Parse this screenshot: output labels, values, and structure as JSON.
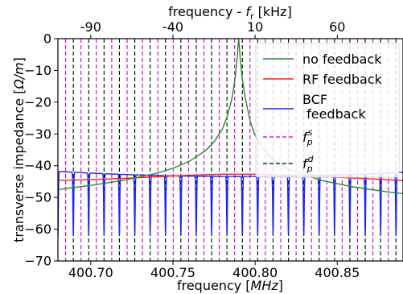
{
  "chart_data": {
    "type": "line",
    "title": "",
    "xlabel": "frequency",
    "xlabel_unit": "MHz",
    "ylabel": "transverse impedance",
    "ylabel_unit": "Ω/m",
    "top_xlabel": "frequency - ",
    "top_xlabel_symbol": "f",
    "top_xlabel_sub": "r",
    "top_xlabel_unit": "[kHz]",
    "xlim": [
      400.68,
      400.89
    ],
    "ylim": [
      -70,
      0
    ],
    "x_ticks": [
      400.7,
      400.75,
      400.8,
      400.85
    ],
    "x_tick_labels": [
      "400.70",
      "400.75",
      "400.80",
      "400.85"
    ],
    "y_ticks": [
      0,
      -10,
      -20,
      -30,
      -40,
      -50,
      -60,
      -70
    ],
    "y_tick_labels": [
      "0",
      "−10",
      "−20",
      "−30",
      "−40",
      "−50",
      "−60",
      "−70"
    ],
    "top_ticks_khz": [
      -90,
      -40,
      10,
      60
    ],
    "top_tick_labels": [
      "-90",
      "-40",
      "10",
      "60"
    ],
    "resonance_mhz": 400.79,
    "grid": false,
    "legend_position": "top-right",
    "series": [
      {
        "name": "no feedback",
        "color": "#2a8a2a",
        "x": [
          400.68,
          400.7,
          400.72,
          400.74,
          400.75,
          400.76,
          400.77,
          400.775,
          400.78,
          400.783,
          400.786,
          400.788,
          400.789,
          400.79,
          400.791,
          400.792,
          400.794,
          400.797,
          400.8,
          400.805,
          400.81,
          400.82,
          400.84,
          400.86,
          400.88,
          400.89
        ],
        "y": [
          -47.5,
          -46.2,
          -44.6,
          -42.4,
          -40.8,
          -38.6,
          -35.2,
          -32.5,
          -28.5,
          -24.6,
          -18.6,
          -11.8,
          -6.5,
          0,
          -6.5,
          -11.8,
          -18.6,
          -26.0,
          -30.5,
          -34.8,
          -37.7,
          -41.0,
          -44.6,
          -46.7,
          -48.2,
          -48.8
        ]
      },
      {
        "name": "RF feedback",
        "color": "#ff2020",
        "x": [
          400.68,
          400.7,
          400.72,
          400.74,
          400.76,
          400.78,
          400.8,
          400.82,
          400.84,
          400.86,
          400.88,
          400.89
        ],
        "y": [
          -44.6,
          -44.4,
          -44.0,
          -43.5,
          -43.0,
          -42.7,
          -42.7,
          -43.0,
          -43.4,
          -43.9,
          -44.4,
          -44.7
        ]
      },
      {
        "name": "BCF\n feedback",
        "color": "#2020ff",
        "notch_depth_min": -62,
        "notch_count": 37
      }
    ],
    "legend_extra": [
      {
        "symbol": "f",
        "sub": "p",
        "sup": "s",
        "color": "#cc00cc",
        "dash": "dashed"
      },
      {
        "symbol": "f",
        "sub": "p",
        "sup": "d",
        "color": "#000000",
        "dash": "dashed"
      }
    ]
  }
}
